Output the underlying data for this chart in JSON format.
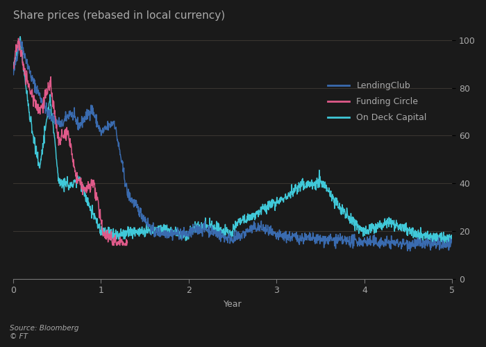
{
  "title": "Share prices (rebased in local currency)",
  "xlabel": "Year",
  "xlim": [
    0,
    5
  ],
  "ylim": [
    0,
    105
  ],
  "yticks": [
    0,
    20,
    40,
    60,
    80,
    100
  ],
  "xticks": [
    0,
    1,
    2,
    3,
    4,
    5
  ],
  "background_color": "#1a1a1a",
  "plot_bg_color": "#1a1a1a",
  "grid_color": "#3a3530",
  "source_text": "Source: Bloomberg\n© FT",
  "legend_labels": [
    "LendingClub",
    "Funding Circle",
    "On Deck Capital"
  ],
  "lendingclub_color": "#3a6baf",
  "funding_circle_color": "#e05a8a",
  "on_deck_color": "#40c8d8",
  "title_fontsize": 11,
  "axis_fontsize": 9,
  "label_fontsize": 9,
  "text_color": "#aaaaaa",
  "tick_color": "#777777"
}
